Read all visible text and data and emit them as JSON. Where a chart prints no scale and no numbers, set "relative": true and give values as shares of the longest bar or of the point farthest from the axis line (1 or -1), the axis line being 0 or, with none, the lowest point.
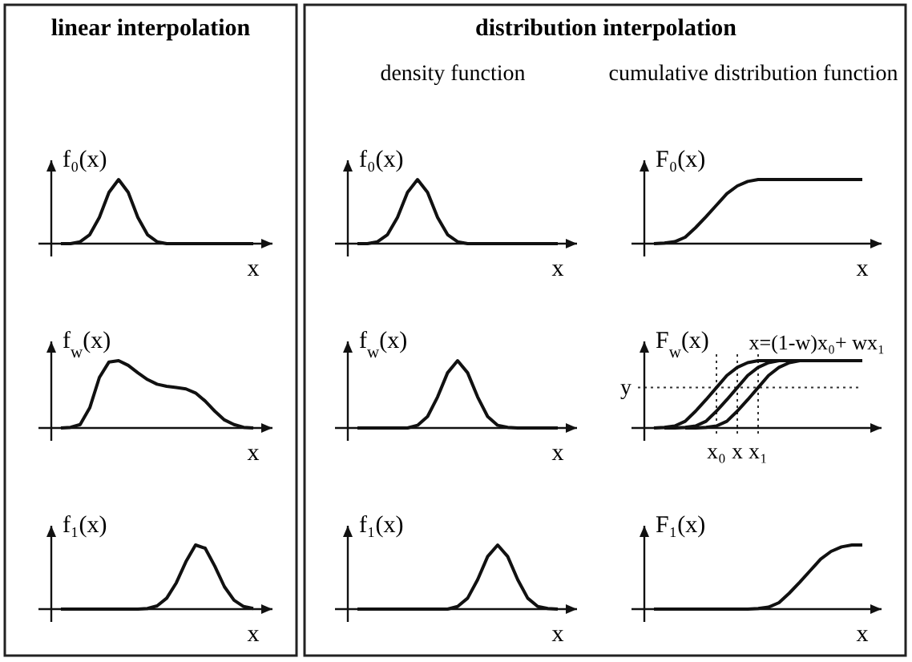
{
  "chart_data": [
    {
      "type": "line",
      "title": "linear interpolation",
      "ylabel": "f₀(x)",
      "xlabel": "x",
      "relative": true,
      "categories": [
        null,
        null,
        null,
        null,
        null,
        null,
        null,
        null,
        null,
        null,
        null,
        null,
        null,
        null,
        null,
        null,
        null,
        null,
        null,
        null,
        null
      ],
      "series": [
        {
          "color": "#111111",
          "values": [
            0,
            0,
            0.03,
            0.14,
            0.41,
            0.8,
            1,
            0.8,
            0.41,
            0.14,
            0.03,
            0,
            0,
            0,
            0,
            0,
            0,
            0,
            0,
            0,
            0
          ]
        }
      ]
    },
    {
      "type": "line",
      "title": "distribution interpolation",
      "subtitle": "density function",
      "ylabel": "f₀(x)",
      "xlabel": "x",
      "relative": true,
      "categories": [
        null,
        null,
        null,
        null,
        null,
        null,
        null,
        null,
        null,
        null,
        null,
        null,
        null,
        null,
        null,
        null,
        null,
        null,
        null,
        null,
        null
      ],
      "series": [
        {
          "color": "#111111",
          "values": [
            0,
            0,
            0.03,
            0.14,
            0.41,
            0.8,
            1,
            0.8,
            0.41,
            0.14,
            0.03,
            0,
            0,
            0,
            0,
            0,
            0,
            0,
            0,
            0,
            0
          ]
        }
      ]
    },
    {
      "type": "line",
      "subtitle": "cumulative distribution function",
      "ylabel": "F₀(x)",
      "xlabel": "x",
      "relative": true,
      "categories": [
        null,
        null,
        null,
        null,
        null,
        null,
        null,
        null,
        null,
        null,
        null,
        null,
        null,
        null,
        null,
        null,
        null,
        null,
        null,
        null,
        null
      ],
      "series": [
        {
          "color": "#111111",
          "values": [
            0,
            0.01,
            0.03,
            0.1,
            0.25,
            0.42,
            0.6,
            0.78,
            0.9,
            0.97,
            1,
            1,
            1,
            1,
            1,
            1,
            1,
            1,
            1,
            1,
            1
          ]
        }
      ]
    },
    {
      "type": "line",
      "ylabel": "f$_{w}$(x)",
      "xlabel": "x",
      "relative": true,
      "categories": [
        null,
        null,
        null,
        null,
        null,
        null,
        null,
        null,
        null,
        null,
        null,
        null,
        null,
        null,
        null,
        null,
        null,
        null,
        null,
        null,
        null
      ],
      "series": [
        {
          "color": "#111111",
          "values": [
            0,
            0.01,
            0.05,
            0.3,
            0.75,
            0.98,
            1,
            0.93,
            0.82,
            0.72,
            0.65,
            0.62,
            0.6,
            0.58,
            0.52,
            0.4,
            0.25,
            0.12,
            0.05,
            0.01,
            0
          ]
        }
      ]
    },
    {
      "type": "line",
      "ylabel": "f$_{w}$(x)",
      "xlabel": "x",
      "relative": true,
      "categories": [
        null,
        null,
        null,
        null,
        null,
        null,
        null,
        null,
        null,
        null,
        null,
        null,
        null,
        null,
        null,
        null,
        null,
        null,
        null,
        null,
        null
      ],
      "series": [
        {
          "color": "#111111",
          "values": [
            0,
            0,
            0,
            0,
            0,
            0,
            0.04,
            0.17,
            0.46,
            0.82,
            1,
            0.82,
            0.46,
            0.17,
            0.04,
            0.01,
            0,
            0,
            0,
            0,
            0
          ]
        }
      ]
    },
    {
      "type": "line",
      "ylabel": "F$_{w}$(x)",
      "relative": true,
      "grid": "x",
      "categories": [
        null,
        null,
        null,
        null,
        null,
        null,
        "x₀",
        null,
        "x",
        null,
        "x₁",
        null,
        null,
        null,
        null,
        null,
        null,
        null,
        null,
        null,
        null
      ],
      "annotations": [
        "x=(1-w)x₀+ wx₁"
      ],
      "ref_lines": [
        {
          "axis": "y",
          "value": 0.6,
          "label": "y",
          "line_style": "dotted"
        }
      ],
      "series": [
        {
          "color": "#111111",
          "values": [
            0,
            0.01,
            0.03,
            0.1,
            0.25,
            0.42,
            0.6,
            0.78,
            0.9,
            0.97,
            1,
            1,
            1,
            null,
            null,
            null,
            null,
            null,
            null,
            null,
            null
          ]
        },
        {
          "color": "#111111",
          "values": [
            null,
            0,
            0,
            0.01,
            0.03,
            0.1,
            0.25,
            0.42,
            0.6,
            0.78,
            0.9,
            0.97,
            1,
            1,
            1,
            null,
            null,
            null,
            null,
            null,
            null
          ]
        },
        {
          "color": "#111111",
          "values": [
            null,
            null,
            null,
            0,
            0,
            0.01,
            0.03,
            0.1,
            0.25,
            0.42,
            0.6,
            0.78,
            0.9,
            0.97,
            1,
            1,
            1,
            1,
            1,
            1,
            1
          ]
        }
      ]
    },
    {
      "type": "line",
      "ylabel": "f₁(x)",
      "xlabel": "x",
      "relative": true,
      "categories": [
        null,
        null,
        null,
        null,
        null,
        null,
        null,
        null,
        null,
        null,
        null,
        null,
        null,
        null,
        null,
        null,
        null,
        null,
        null,
        null,
        null
      ],
      "series": [
        {
          "color": "#111111",
          "values": [
            0,
            0,
            0,
            0,
            0,
            0,
            0,
            0,
            0,
            0.01,
            0.05,
            0.17,
            0.41,
            0.74,
            1,
            0.95,
            0.67,
            0.35,
            0.14,
            0.04,
            0.01
          ]
        }
      ]
    },
    {
      "type": "line",
      "ylabel": "f₁(x)",
      "xlabel": "x",
      "relative": true,
      "categories": [
        null,
        null,
        null,
        null,
        null,
        null,
        null,
        null,
        null,
        null,
        null,
        null,
        null,
        null,
        null,
        null,
        null,
        null,
        null,
        null,
        null
      ],
      "series": [
        {
          "color": "#111111",
          "values": [
            0,
            0,
            0,
            0,
            0,
            0,
            0,
            0,
            0,
            0,
            0.04,
            0.17,
            0.46,
            0.82,
            1,
            0.82,
            0.46,
            0.17,
            0.04,
            0.01,
            0
          ]
        }
      ]
    },
    {
      "type": "line",
      "ylabel": "F₁(x)",
      "xlabel": "x",
      "relative": true,
      "categories": [
        null,
        null,
        null,
        null,
        null,
        null,
        null,
        null,
        null,
        null,
        null,
        null,
        null,
        null,
        null,
        null,
        null,
        null,
        null,
        null,
        null
      ],
      "series": [
        {
          "color": "#111111",
          "values": [
            0,
            0,
            0,
            0,
            0,
            0,
            0,
            0,
            0,
            0,
            0.01,
            0.03,
            0.1,
            0.25,
            0.42,
            0.6,
            0.78,
            0.9,
            0.97,
            1,
            1
          ]
        }
      ]
    }
  ]
}
